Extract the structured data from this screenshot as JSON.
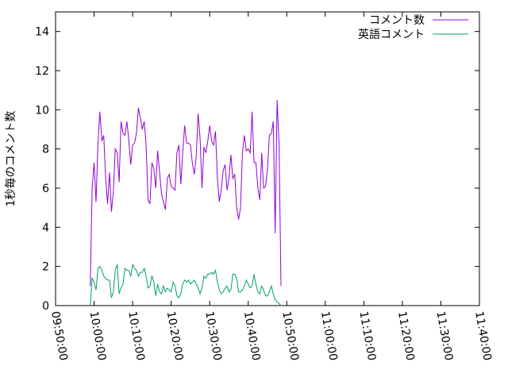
{
  "chart_data": {
    "type": "line",
    "title": "",
    "xlabel": "",
    "ylabel": "1秒毎のコメント数",
    "xlim": [
      "09:50:00",
      "11:40:00"
    ],
    "ylim": [
      0,
      15
    ],
    "x_ticks": [
      "09:50:00",
      "10:00:00",
      "10:10:00",
      "10:20:00",
      "10:30:00",
      "10:40:00",
      "10:50:00",
      "11:00:00",
      "11:10:00",
      "11:20:00",
      "11:30:00",
      "11:40:00"
    ],
    "y_ticks": [
      "0",
      "2",
      "4",
      "6",
      "8",
      "10",
      "12",
      "14"
    ],
    "grid": false,
    "legend_position": "top-right",
    "series": [
      {
        "name": "コメント数",
        "color": "#9400d3",
        "points": [
          [
            "09:59:00",
            1.0
          ],
          [
            "09:59:30",
            6.0
          ],
          [
            "10:00:00",
            7.3
          ],
          [
            "10:00:30",
            5.3
          ],
          [
            "10:01:00",
            8.3
          ],
          [
            "10:01:30",
            9.9
          ],
          [
            "10:02:00",
            8.4
          ],
          [
            "10:02:30",
            8.7
          ],
          [
            "10:03:00",
            6.5
          ],
          [
            "10:03:30",
            5.2
          ],
          [
            "10:04:00",
            6.8
          ],
          [
            "10:04:30",
            4.8
          ],
          [
            "10:05:00",
            5.8
          ],
          [
            "10:05:30",
            8.0
          ],
          [
            "10:06:00",
            7.8
          ],
          [
            "10:06:30",
            6.3
          ],
          [
            "10:07:00",
            9.4
          ],
          [
            "10:07:30",
            8.8
          ],
          [
            "10:08:00",
            8.7
          ],
          [
            "10:08:30",
            9.4
          ],
          [
            "10:09:00",
            8.5
          ],
          [
            "10:09:30",
            7.2
          ],
          [
            "10:10:00",
            8.2
          ],
          [
            "10:10:30",
            8.3
          ],
          [
            "10:11:00",
            8.8
          ],
          [
            "10:11:30",
            10.1
          ],
          [
            "10:12:00",
            9.6
          ],
          [
            "10:12:30",
            9.0
          ],
          [
            "10:13:00",
            9.4
          ],
          [
            "10:13:30",
            8.2
          ],
          [
            "10:14:00",
            5.4
          ],
          [
            "10:14:30",
            5.2
          ],
          [
            "10:15:00",
            7.3
          ],
          [
            "10:15:30",
            7.0
          ],
          [
            "10:16:00",
            6.0
          ],
          [
            "10:16:30",
            7.9
          ],
          [
            "10:17:00",
            6.8
          ],
          [
            "10:17:30",
            5.7
          ],
          [
            "10:18:00",
            5.3
          ],
          [
            "10:18:30",
            4.9
          ],
          [
            "10:19:00",
            6.5
          ],
          [
            "10:19:30",
            6.7
          ],
          [
            "10:20:00",
            6.1
          ],
          [
            "10:20:30",
            6.0
          ],
          [
            "10:21:00",
            5.9
          ],
          [
            "10:21:30",
            7.8
          ],
          [
            "10:22:00",
            8.2
          ],
          [
            "10:22:30",
            6.2
          ],
          [
            "10:23:00",
            7.8
          ],
          [
            "10:23:30",
            9.2
          ],
          [
            "10:24:00",
            8.3
          ],
          [
            "10:24:30",
            8.3
          ],
          [
            "10:25:00",
            8.2
          ],
          [
            "10:25:30",
            7.3
          ],
          [
            "10:26:00",
            6.7
          ],
          [
            "10:26:30",
            7.6
          ],
          [
            "10:27:00",
            9.8
          ],
          [
            "10:27:30",
            8.6
          ],
          [
            "10:28:00",
            6.0
          ],
          [
            "10:28:30",
            8.1
          ],
          [
            "10:29:00",
            7.8
          ],
          [
            "10:29:30",
            8.4
          ],
          [
            "10:30:00",
            9.2
          ],
          [
            "10:30:30",
            8.4
          ],
          [
            "10:31:00",
            8.2
          ],
          [
            "10:31:30",
            8.9
          ],
          [
            "10:32:00",
            6.5
          ],
          [
            "10:32:30",
            5.3
          ],
          [
            "10:33:00",
            5.9
          ],
          [
            "10:33:30",
            6.9
          ],
          [
            "10:34:00",
            7.2
          ],
          [
            "10:34:30",
            5.9
          ],
          [
            "10:35:00",
            6.5
          ],
          [
            "10:35:30",
            7.7
          ],
          [
            "10:36:00",
            6.5
          ],
          [
            "10:36:30",
            6.7
          ],
          [
            "10:37:00",
            5.0
          ],
          [
            "10:37:30",
            4.4
          ],
          [
            "10:38:00",
            5.0
          ],
          [
            "10:38:30",
            7.8
          ],
          [
            "10:39:00",
            8.7
          ],
          [
            "10:39:30",
            7.9
          ],
          [
            "10:40:00",
            8.0
          ],
          [
            "10:40:30",
            7.8
          ],
          [
            "10:41:00",
            9.9
          ],
          [
            "10:41:30",
            7.3
          ],
          [
            "10:42:00",
            7.3
          ],
          [
            "10:42:30",
            6.0
          ],
          [
            "10:43:00",
            5.4
          ],
          [
            "10:43:30",
            7.8
          ],
          [
            "10:44:00",
            6.0
          ],
          [
            "10:44:30",
            6.1
          ],
          [
            "10:45:00",
            7.0
          ],
          [
            "10:45:30",
            8.7
          ],
          [
            "10:46:00",
            8.8
          ],
          [
            "10:46:30",
            9.4
          ],
          [
            "10:47:00",
            3.7
          ],
          [
            "10:47:30",
            10.5
          ],
          [
            "10:48:00",
            8.2
          ],
          [
            "10:48:30",
            1.0
          ]
        ]
      },
      {
        "name": "英語コメント",
        "color": "#009e73",
        "points": [
          [
            "09:59:00",
            0.0
          ],
          [
            "09:59:30",
            1.4
          ],
          [
            "10:00:00",
            1.2
          ],
          [
            "10:00:30",
            0.8
          ],
          [
            "10:01:00",
            1.9
          ],
          [
            "10:01:30",
            2.0
          ],
          [
            "10:02:00",
            1.8
          ],
          [
            "10:02:30",
            1.5
          ],
          [
            "10:03:00",
            1.4
          ],
          [
            "10:03:30",
            1.3
          ],
          [
            "10:04:00",
            1.3
          ],
          [
            "10:04:30",
            0.4
          ],
          [
            "10:05:00",
            0.7
          ],
          [
            "10:05:30",
            1.8
          ],
          [
            "10:06:00",
            2.1
          ],
          [
            "10:06:30",
            0.6
          ],
          [
            "10:07:00",
            0.9
          ],
          [
            "10:07:30",
            1.1
          ],
          [
            "10:08:00",
            1.9
          ],
          [
            "10:08:30",
            1.8
          ],
          [
            "10:09:00",
            1.8
          ],
          [
            "10:09:30",
            1.5
          ],
          [
            "10:10:00",
            2.1
          ],
          [
            "10:10:30",
            1.9
          ],
          [
            "10:11:00",
            1.8
          ],
          [
            "10:11:30",
            1.5
          ],
          [
            "10:12:00",
            1.7
          ],
          [
            "10:12:30",
            1.7
          ],
          [
            "10:13:00",
            1.9
          ],
          [
            "10:13:30",
            1.5
          ],
          [
            "10:14:00",
            0.9
          ],
          [
            "10:14:30",
            1.0
          ],
          [
            "10:15:00",
            1.5
          ],
          [
            "10:15:30",
            1.2
          ],
          [
            "10:16:00",
            0.5
          ],
          [
            "10:16:30",
            1.1
          ],
          [
            "10:17:00",
            0.7
          ],
          [
            "10:17:30",
            0.6
          ],
          [
            "10:18:00",
            1.0
          ],
          [
            "10:18:30",
            0.7
          ],
          [
            "10:19:00",
            0.9
          ],
          [
            "10:19:30",
            0.8
          ],
          [
            "10:20:00",
            0.7
          ],
          [
            "10:20:30",
            1.2
          ],
          [
            "10:21:00",
            1.0
          ],
          [
            "10:21:30",
            0.5
          ],
          [
            "10:22:00",
            0.4
          ],
          [
            "10:22:30",
            0.6
          ],
          [
            "10:23:00",
            1.1
          ],
          [
            "10:23:30",
            1.3
          ],
          [
            "10:24:00",
            1.2
          ],
          [
            "10:24:30",
            1.3
          ],
          [
            "10:25:00",
            1.1
          ],
          [
            "10:25:30",
            1.2
          ],
          [
            "10:26:00",
            1.3
          ],
          [
            "10:26:30",
            1.1
          ],
          [
            "10:27:00",
            0.9
          ],
          [
            "10:27:30",
            0.6
          ],
          [
            "10:28:00",
            0.9
          ],
          [
            "10:28:30",
            1.5
          ],
          [
            "10:29:00",
            1.4
          ],
          [
            "10:29:30",
            1.6
          ],
          [
            "10:30:00",
            1.6
          ],
          [
            "10:30:30",
            1.7
          ],
          [
            "10:31:00",
            1.6
          ],
          [
            "10:31:30",
            1.8
          ],
          [
            "10:32:00",
            1.2
          ],
          [
            "10:32:30",
            0.8
          ],
          [
            "10:33:00",
            0.6
          ],
          [
            "10:33:30",
            0.7
          ],
          [
            "10:34:00",
            0.9
          ],
          [
            "10:34:30",
            1.0
          ],
          [
            "10:35:00",
            0.7
          ],
          [
            "10:35:30",
            0.8
          ],
          [
            "10:36:00",
            1.6
          ],
          [
            "10:36:30",
            1.6
          ],
          [
            "10:37:00",
            1.4
          ],
          [
            "10:37:30",
            0.7
          ],
          [
            "10:38:00",
            0.7
          ],
          [
            "10:38:30",
            0.8
          ],
          [
            "10:39:00",
            1.0
          ],
          [
            "10:39:30",
            1.3
          ],
          [
            "10:40:00",
            1.1
          ],
          [
            "10:40:30",
            0.9
          ],
          [
            "10:41:00",
            1.0
          ],
          [
            "10:41:30",
            1.6
          ],
          [
            "10:42:00",
            1.1
          ],
          [
            "10:42:30",
            0.7
          ],
          [
            "10:43:00",
            0.6
          ],
          [
            "10:43:30",
            1.0
          ],
          [
            "10:44:00",
            0.8
          ],
          [
            "10:44:30",
            0.5
          ],
          [
            "10:45:00",
            0.5
          ],
          [
            "10:45:30",
            0.7
          ],
          [
            "10:46:00",
            1.0
          ],
          [
            "10:46:30",
            0.6
          ],
          [
            "10:47:00",
            0.3
          ],
          [
            "10:47:30",
            0.2
          ],
          [
            "10:48:00",
            0.1
          ],
          [
            "10:48:30",
            0.0
          ]
        ]
      }
    ]
  }
}
